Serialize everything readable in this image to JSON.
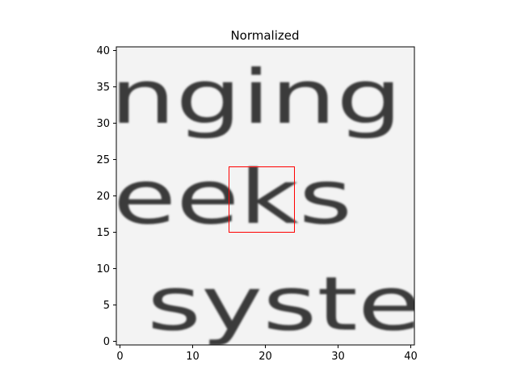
{
  "chart_data": {
    "type": "heatmap",
    "title": "Normalized",
    "xlabel": "",
    "ylabel": "",
    "colormap": "grayscale (dark = low, white = high)",
    "image_size": [
      41,
      41
    ],
    "xlim": [
      -0.5,
      40.5
    ],
    "ylim": [
      40.5,
      -0.5
    ],
    "x_ticks": [
      0,
      10,
      20,
      30,
      40
    ],
    "y_ticks": [
      0,
      5,
      10,
      15,
      20,
      25,
      30,
      35,
      40
    ],
    "x_tick_labels": [
      "0",
      "10",
      "20",
      "30",
      "40"
    ],
    "y_tick_labels": [
      "0",
      "5",
      "10",
      "15",
      "20",
      "25",
      "30",
      "35",
      "40"
    ],
    "image_content_text": [
      "nging",
      "eeks",
      "syste"
    ],
    "highlight_box": {
      "x": [
        15,
        24
      ],
      "y": [
        15,
        24
      ],
      "color": "#ff0000"
    },
    "grid": false,
    "legend": "none"
  }
}
